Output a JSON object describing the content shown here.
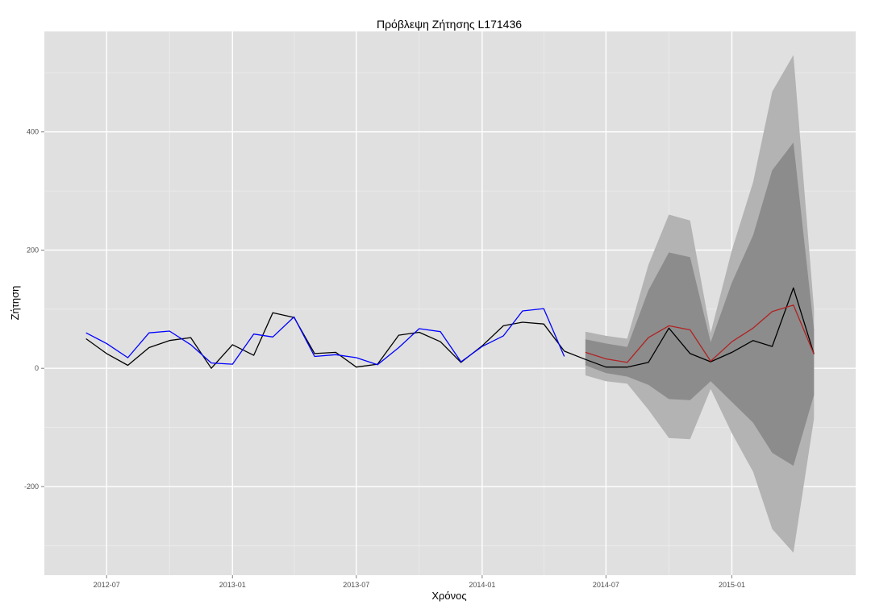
{
  "chart_data": {
    "type": "line",
    "title": "Πρόβλεψη Ζήτησης L171436",
    "xlabel": "Χρόνος",
    "ylabel": "Ζήτηση",
    "x_tick_labels": [
      "2012-07",
      "2013-01",
      "2013-07",
      "2014-01",
      "2014-07",
      "2015-01"
    ],
    "x_tick_dates": [
      "2012-07-01",
      "2013-01-01",
      "2013-07-01",
      "2014-01-01",
      "2014-07-01",
      "2015-01-01"
    ],
    "xlim": [
      "2012-04-01",
      "2015-07-01"
    ],
    "y_ticks": [
      -200,
      0,
      200,
      400
    ],
    "ylim": [
      -350,
      570
    ],
    "grid": true,
    "legend": "none",
    "background_color": "#e0e0e0",
    "series": [
      {
        "color": "#000000",
        "x": [
          "2012-06-01",
          "2012-07-01",
          "2012-08-01",
          "2012-09-01",
          "2012-10-01",
          "2012-11-01",
          "2012-12-01",
          "2013-01-01",
          "2013-02-01",
          "2013-03-01",
          "2013-04-01",
          "2013-05-01",
          "2013-06-01",
          "2013-07-01",
          "2013-08-01",
          "2013-09-01",
          "2013-10-01",
          "2013-11-01",
          "2013-12-01",
          "2014-01-01",
          "2014-02-01",
          "2014-03-01",
          "2014-04-01",
          "2014-05-01",
          "2014-06-01",
          "2014-07-01",
          "2014-08-01",
          "2014-09-01",
          "2014-10-01",
          "2014-11-01",
          "2014-12-01",
          "2015-01-01",
          "2015-02-01",
          "2015-03-01",
          "2015-04-01",
          "2015-05-01"
        ],
        "values": [
          50,
          25,
          5,
          35,
          47,
          52,
          0,
          40,
          22,
          94,
          86,
          25,
          27,
          2,
          7,
          56,
          61,
          45,
          10,
          38,
          72,
          78,
          75,
          29,
          15,
          2,
          2,
          10,
          68,
          25,
          11,
          27,
          47,
          37,
          136,
          24
        ]
      },
      {
        "color": "#0000ff",
        "x": [
          "2012-06-01",
          "2012-07-01",
          "2012-08-01",
          "2012-09-01",
          "2012-10-01",
          "2012-11-01",
          "2012-12-01",
          "2013-01-01",
          "2013-02-01",
          "2013-03-01",
          "2013-04-01",
          "2013-05-01",
          "2013-06-01",
          "2013-07-01",
          "2013-08-01",
          "2013-09-01",
          "2013-10-01",
          "2013-11-01",
          "2013-12-01",
          "2014-01-01",
          "2014-02-01",
          "2014-03-01",
          "2014-04-01",
          "2014-05-01"
        ],
        "values": [
          60,
          42,
          18,
          60,
          63,
          40,
          9,
          7,
          58,
          53,
          87,
          20,
          23,
          18,
          6,
          35,
          67,
          62,
          11,
          37,
          55,
          97,
          101,
          20
        ]
      },
      {
        "color": "#b22222",
        "x": [
          "2014-06-01",
          "2014-07-01",
          "2014-08-01",
          "2014-09-01",
          "2014-10-01",
          "2014-11-01",
          "2014-12-01",
          "2015-01-01",
          "2015-02-01",
          "2015-03-01",
          "2015-04-01",
          "2015-05-01"
        ],
        "values": [
          27,
          16,
          10,
          52,
          72,
          65,
          12,
          45,
          68,
          96,
          107,
          24
        ]
      }
    ],
    "bands": [
      {
        "color": "#b3b3b3",
        "x": [
          "2014-06-01",
          "2014-07-01",
          "2014-08-01",
          "2014-09-01",
          "2014-10-01",
          "2014-11-01",
          "2014-12-01",
          "2015-01-01",
          "2015-02-01",
          "2015-03-01",
          "2015-04-01",
          "2015-05-01"
        ],
        "upper": [
          62,
          55,
          50,
          175,
          260,
          250,
          60,
          200,
          315,
          468,
          530,
          100
        ],
        "lower": [
          -12,
          -22,
          -26,
          -70,
          -118,
          -120,
          -35,
          -110,
          -175,
          -272,
          -312,
          -85
        ]
      },
      {
        "color": "#8c8c8c",
        "x": [
          "2014-06-01",
          "2014-07-01",
          "2014-08-01",
          "2014-09-01",
          "2014-10-01",
          "2014-11-01",
          "2014-12-01",
          "2015-01-01",
          "2015-02-01",
          "2015-03-01",
          "2015-04-01",
          "2015-05-01"
        ],
        "upper": [
          49,
          42,
          36,
          132,
          196,
          188,
          44,
          145,
          225,
          335,
          382,
          65
        ],
        "lower": [
          5,
          -8,
          -14,
          -28,
          -52,
          -54,
          -22,
          -57,
          -92,
          -143,
          -165,
          -45
        ]
      }
    ]
  }
}
